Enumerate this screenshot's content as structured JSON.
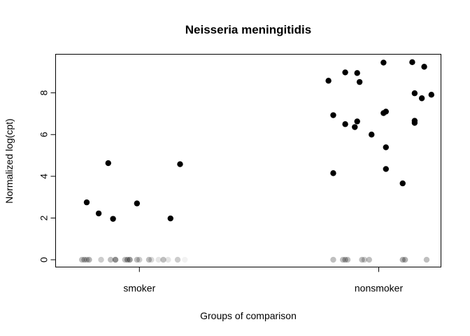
{
  "chart_data": {
    "type": "scatter",
    "title": "Neisseria meningitidis",
    "xlabel": "Groups of comparison",
    "ylabel": "Normalized log(cpt)",
    "categories": [
      "smoker",
      "nonsmoker"
    ],
    "ylim": [
      -0.35,
      9.85
    ],
    "yticks": [
      0,
      2,
      4,
      6,
      8
    ],
    "grid": false,
    "legend": "none",
    "colors": {
      "nonzero": "#000000",
      "zero": "#000000"
    },
    "series": [
      {
        "category": "smoker",
        "nonzero_points": [
          {
            "x": 0.78,
            "y": 2.75
          },
          {
            "x": 0.83,
            "y": 2.22
          },
          {
            "x": 0.87,
            "y": 4.63
          },
          {
            "x": 0.89,
            "y": 1.96
          },
          {
            "x": 0.99,
            "y": 2.7
          },
          {
            "x": 1.13,
            "y": 1.98
          },
          {
            "x": 1.17,
            "y": 4.58
          }
        ],
        "zero_points": [
          {
            "x": 0.76,
            "y": 0,
            "opacity": 0.25
          },
          {
            "x": 0.77,
            "y": 0,
            "opacity": 0.3
          },
          {
            "x": 0.78,
            "y": 0,
            "opacity": 0.25
          },
          {
            "x": 0.79,
            "y": 0,
            "opacity": 0.3
          },
          {
            "x": 0.84,
            "y": 0,
            "opacity": 0.2
          },
          {
            "x": 0.88,
            "y": 0,
            "opacity": 0.25
          },
          {
            "x": 0.9,
            "y": 0,
            "opacity": 0.3
          },
          {
            "x": 0.9,
            "y": 0,
            "opacity": 0.2
          },
          {
            "x": 0.94,
            "y": 0,
            "opacity": 0.25
          },
          {
            "x": 0.95,
            "y": 0,
            "opacity": 0.35
          },
          {
            "x": 0.96,
            "y": 0,
            "opacity": 0.4
          },
          {
            "x": 0.99,
            "y": 0,
            "opacity": 0.25
          },
          {
            "x": 1.0,
            "y": 0,
            "opacity": 0.2
          },
          {
            "x": 1.04,
            "y": 0,
            "opacity": 0.25
          },
          {
            "x": 1.05,
            "y": 0,
            "opacity": 0.15
          },
          {
            "x": 1.08,
            "y": 0,
            "opacity": 0.1
          },
          {
            "x": 1.1,
            "y": 0,
            "opacity": 0.25
          },
          {
            "x": 1.12,
            "y": 0,
            "opacity": 0.1
          },
          {
            "x": 1.16,
            "y": 0,
            "opacity": 0.2
          },
          {
            "x": 1.19,
            "y": 0,
            "opacity": 0.05
          }
        ]
      },
      {
        "category": "nonsmoker",
        "nonzero_points": [
          {
            "x": 1.79,
            "y": 8.58
          },
          {
            "x": 1.81,
            "y": 6.93
          },
          {
            "x": 1.81,
            "y": 4.15
          },
          {
            "x": 1.86,
            "y": 8.98
          },
          {
            "x": 1.86,
            "y": 6.5
          },
          {
            "x": 1.9,
            "y": 6.36
          },
          {
            "x": 1.91,
            "y": 8.95
          },
          {
            "x": 1.91,
            "y": 6.63
          },
          {
            "x": 1.92,
            "y": 8.52
          },
          {
            "x": 1.97,
            "y": 6.0
          },
          {
            "x": 2.02,
            "y": 9.45
          },
          {
            "x": 2.02,
            "y": 7.03
          },
          {
            "x": 2.03,
            "y": 7.1
          },
          {
            "x": 2.03,
            "y": 5.39
          },
          {
            "x": 2.03,
            "y": 4.35
          },
          {
            "x": 2.1,
            "y": 3.66
          },
          {
            "x": 2.14,
            "y": 9.47
          },
          {
            "x": 2.15,
            "y": 7.98
          },
          {
            "x": 2.15,
            "y": 6.66
          },
          {
            "x": 2.15,
            "y": 6.56
          },
          {
            "x": 2.18,
            "y": 7.74
          },
          {
            "x": 2.19,
            "y": 9.25
          },
          {
            "x": 2.22,
            "y": 7.91
          }
        ],
        "zero_points": [
          {
            "x": 1.81,
            "y": 0,
            "opacity": 0.25
          },
          {
            "x": 1.85,
            "y": 0,
            "opacity": 0.25
          },
          {
            "x": 1.86,
            "y": 0,
            "opacity": 0.3
          },
          {
            "x": 1.87,
            "y": 0,
            "opacity": 0.25
          },
          {
            "x": 1.93,
            "y": 0,
            "opacity": 0.25
          },
          {
            "x": 1.94,
            "y": 0,
            "opacity": 0.2
          },
          {
            "x": 1.96,
            "y": 0,
            "opacity": 0.25
          },
          {
            "x": 2.1,
            "y": 0,
            "opacity": 0.3
          },
          {
            "x": 2.11,
            "y": 0,
            "opacity": 0.3
          },
          {
            "x": 2.2,
            "y": 0,
            "opacity": 0.25
          }
        ]
      }
    ]
  }
}
